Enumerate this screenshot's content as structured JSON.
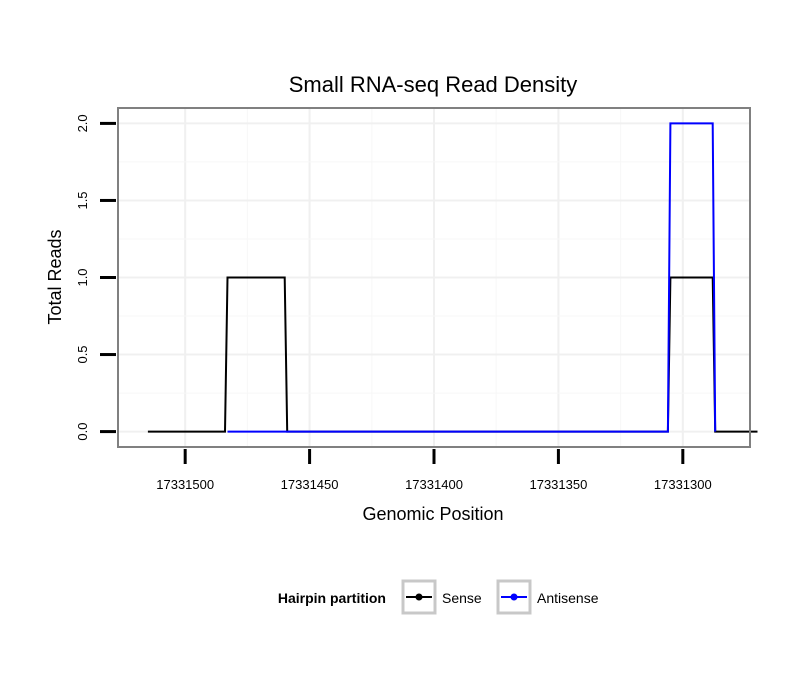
{
  "chart_data": {
    "type": "line",
    "title": "Small RNA-seq Read Density",
    "xlabel": "Genomic Position",
    "ylabel": "Total Reads",
    "x_reversed": true,
    "xlim": [
      17331527,
      17331273
    ],
    "ylim": [
      -0.1,
      2.1
    ],
    "x_ticks": [
      17331500,
      17331450,
      17331400,
      17331350,
      17331300
    ],
    "x_tick_labels": [
      "17331500",
      "17331450",
      "17331400",
      "17331350",
      "17331300"
    ],
    "y_ticks": [
      0,
      0.5,
      1,
      1.5,
      2
    ],
    "y_tick_labels": [
      "0.0",
      "0.5",
      "1.0",
      "1.5",
      "2.0"
    ],
    "grid": true,
    "legend": {
      "title": "Hairpin partition",
      "position": "bottom",
      "entries": [
        "Sense",
        "Antisense"
      ]
    },
    "series": [
      {
        "name": "Sense",
        "color": "#000000",
        "x": [
          17331515,
          17331484,
          17331483,
          17331460,
          17331459,
          17331306,
          17331305,
          17331288,
          17331287,
          17331270
        ],
        "y": [
          0,
          0,
          1,
          1,
          0,
          0,
          1,
          1,
          0,
          0
        ]
      },
      {
        "name": "Antisense",
        "color": "#0000ff",
        "x": [
          17331483,
          17331459,
          17331306,
          17331305,
          17331288,
          17331287
        ],
        "y": [
          0,
          0,
          0,
          2,
          2,
          0
        ]
      }
    ]
  }
}
